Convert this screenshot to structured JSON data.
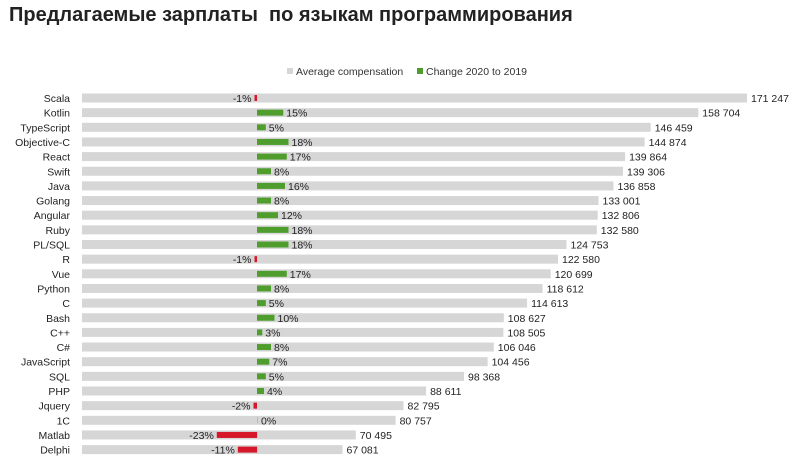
{
  "chart_data": {
    "type": "bar",
    "title": "Предлагаемые зарплаты  по языкам программирования",
    "legend": {
      "placement": "top-right",
      "entries": [
        {
          "label": "Average compensation",
          "color": "#d6d6d6"
        },
        {
          "label": "Change 2020 to 2019",
          "color": "#4f9d2d"
        }
      ]
    },
    "colors": {
      "average": "#d6d6d6",
      "positive": "#4f9d2d",
      "negative": "#d7182a"
    },
    "categories": [
      "Scala",
      "Kotlin",
      "TypeScript",
      "Objective-C",
      "React",
      "Swift",
      "Java",
      "Golang",
      "Angular",
      "Ruby",
      "PL/SQL",
      "R",
      "Vue",
      "Python",
      "C",
      "Bash",
      "C++",
      "C#",
      "JavaScript",
      "SQL",
      "PHP",
      "Jquery",
      "1C",
      "Matlab",
      "Delphi"
    ],
    "series": [
      {
        "name": "Average compensation",
        "values": [
          171247,
          158704,
          146459,
          144874,
          139864,
          139306,
          136858,
          133001,
          132806,
          132580,
          124753,
          122580,
          120699,
          118612,
          114613,
          108627,
          108505,
          106046,
          104456,
          98368,
          88611,
          82795,
          80757,
          70495,
          67081
        ],
        "labels": [
          "171 247",
          "158 704",
          "146 459",
          "144 874",
          "139 864",
          "139 306",
          "136 858",
          "133 001",
          "132 806",
          "132 580",
          "124 753",
          "122 580",
          "120 699",
          "118 612",
          "114 613",
          "108 627",
          "108 505",
          "106 046",
          "104 456",
          "98 368",
          "88 611",
          "82 795",
          "80 757",
          "70 495",
          "67 081"
        ]
      },
      {
        "name": "Change 2020 to 2019",
        "values": [
          -1,
          15,
          5,
          18,
          17,
          8,
          16,
          8,
          12,
          18,
          18,
          -1,
          17,
          8,
          5,
          10,
          3,
          8,
          7,
          5,
          4,
          -2,
          0,
          -23,
          -11
        ],
        "labels": [
          "-1%",
          "15%",
          "5%",
          "18%",
          "17%",
          "8%",
          "16%",
          "8%",
          "12%",
          "18%",
          "18%",
          "-1%",
          "17%",
          "8%",
          "5%",
          "10%",
          "3%",
          "8%",
          "7%",
          "5%",
          "4%",
          "-2%",
          "0%",
          "-23%",
          "-11%"
        ]
      }
    ],
    "xlim": [
      0,
      171247
    ],
    "grid": false
  }
}
